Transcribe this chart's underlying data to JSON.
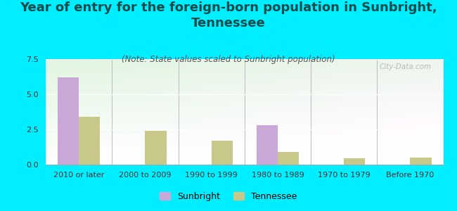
{
  "title": "Year of entry for the foreign-born population in Sunbright,\nTennessee",
  "subtitle": "(Note: State values scaled to Sunbright population)",
  "categories": [
    "2010 or later",
    "2000 to 2009",
    "1990 to 1999",
    "1980 to 1989",
    "1970 to 1979",
    "Before 1970"
  ],
  "sunbright_values": [
    6.2,
    0,
    0,
    2.8,
    0,
    0
  ],
  "tennessee_values": [
    3.4,
    2.4,
    1.7,
    0.9,
    0.45,
    0.5
  ],
  "sunbright_color": "#c9a8d8",
  "tennessee_color": "#c8c88a",
  "background_color": "#00eeff",
  "ylim": [
    0,
    7.5
  ],
  "yticks": [
    0,
    2.5,
    5,
    7.5
  ],
  "bar_width": 0.32,
  "watermark": "City-Data.com",
  "legend_labels": [
    "Sunbright",
    "Tennessee"
  ],
  "title_fontsize": 13,
  "subtitle_fontsize": 8.5,
  "tick_fontsize": 8,
  "legend_fontsize": 9,
  "title_color": "#1a4a4a"
}
